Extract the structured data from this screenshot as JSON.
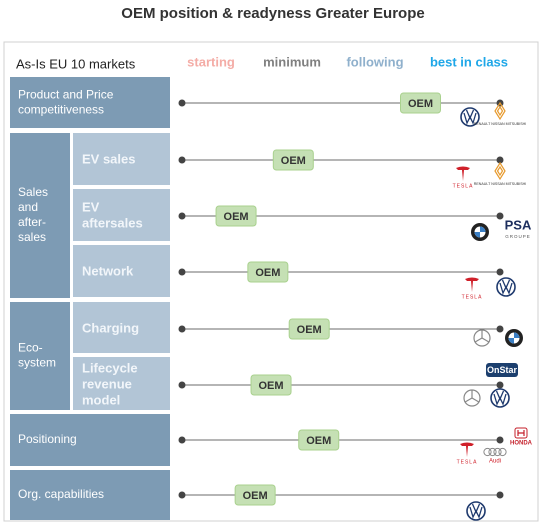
{
  "title": "OEM position & readyness Greater Europe",
  "header": {
    "label": "As-Is EU 10 markets",
    "scale_labels": [
      "starting",
      "minimum",
      "following",
      "best in class"
    ]
  },
  "oem_label": "OEM",
  "scale_range": [
    0,
    100
  ],
  "sections": [
    {
      "label_lines": [
        "Product and Price",
        "competitiveness"
      ],
      "position": 75,
      "logo_texts": [
        "RENAULT NISSAN MITSUBISHI"
      ]
    },
    {
      "label_lines": [
        "Sales",
        "and",
        "after-",
        "sales"
      ],
      "items": [
        {
          "label_lines": [
            "EV sales"
          ],
          "position": 35,
          "logo_texts": [
            "TESLA",
            "RENAULT NISSAN MITSUBISHI"
          ]
        },
        {
          "label_lines": [
            "EV",
            "aftersales"
          ],
          "position": 17,
          "logo_texts": [
            "PSA",
            "GROUPE"
          ]
        },
        {
          "label_lines": [
            "Network"
          ],
          "position": 27,
          "logo_texts": [
            "TESLA"
          ]
        }
      ]
    },
    {
      "label_lines": [
        "Eco-",
        "system"
      ],
      "items": [
        {
          "label_lines": [
            "Charging"
          ],
          "position": 40
        },
        {
          "label_lines": [
            "Lifecycle",
            "revenue",
            "model"
          ],
          "position": 28,
          "logo_texts": [
            "OnStar"
          ]
        }
      ]
    },
    {
      "label_lines": [
        "Positioning"
      ],
      "position": 43,
      "logo_texts": [
        "TESLA",
        "Audi",
        "HONDA"
      ]
    },
    {
      "label_lines": [
        "Org. capabilities"
      ],
      "position": 23
    }
  ]
}
